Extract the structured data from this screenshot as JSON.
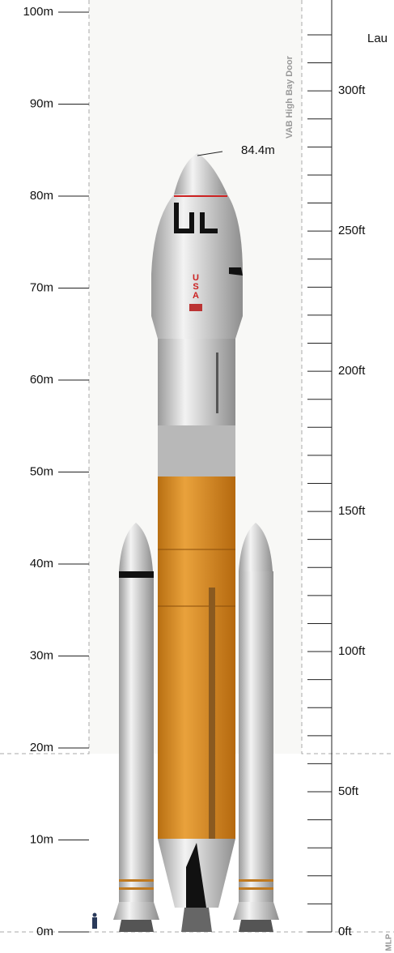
{
  "left_scale": {
    "labels": [
      "0m",
      "10m",
      "20m",
      "30m",
      "40m",
      "50m",
      "60m",
      "70m",
      "80m",
      "90m",
      "100m"
    ]
  },
  "right_scale": {
    "labels": [
      "0ft",
      "50ft",
      "100ft",
      "150ft",
      "200ft",
      "250ft",
      "300ft"
    ]
  },
  "height_label": "84.4m",
  "door_label": "VAB High Bay Door",
  "cut_label": "Lau",
  "platform_label": "MLP",
  "nose_text": "USA"
}
